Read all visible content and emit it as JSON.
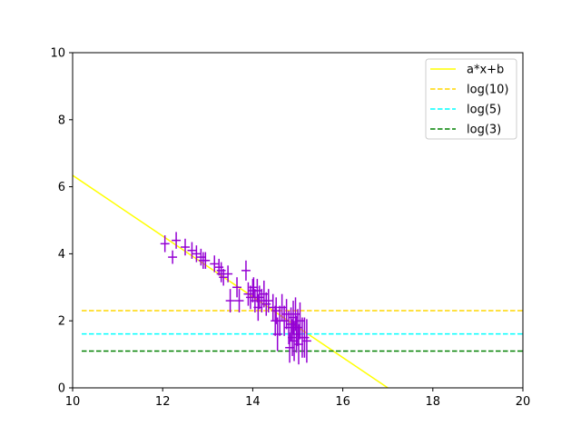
{
  "chart_data": {
    "type": "scatter",
    "title": "",
    "xlabel": "",
    "ylabel": "",
    "xlim": [
      10,
      20
    ],
    "ylim": [
      0,
      10
    ],
    "xticks": [
      "10",
      "12",
      "14",
      "16",
      "18",
      "20"
    ],
    "yticks": [
      "0",
      "2",
      "4",
      "6",
      "8",
      "10"
    ],
    "grid": false,
    "legend_position": "top-right",
    "series": [
      {
        "name": "a*x+b",
        "kind": "line",
        "color": "#ffff00",
        "dash": "solid",
        "x": [
          10,
          17
        ],
        "y": [
          6.34,
          0
        ]
      },
      {
        "name": "log(10)",
        "kind": "hline",
        "color": "#ffd700",
        "dash": "dashed",
        "y": 2.303
      },
      {
        "name": "log(5)",
        "kind": "hline",
        "color": "#00ffff",
        "dash": "dashed",
        "y": 1.609
      },
      {
        "name": "log(3)",
        "kind": "hline",
        "color": "#008000",
        "dash": "dashed",
        "y": 1.099
      }
    ],
    "points": {
      "color": "#9400d3",
      "x": [
        12.05,
        12.22,
        12.3,
        12.5,
        12.65,
        12.75,
        12.85,
        12.9,
        12.95,
        13.15,
        13.25,
        13.3,
        13.3,
        13.35,
        13.45,
        13.5,
        13.65,
        13.7,
        13.85,
        13.9,
        13.95,
        14.0,
        14.02,
        14.05,
        14.1,
        14.12,
        14.15,
        14.2,
        14.25,
        14.3,
        14.35,
        14.45,
        14.5,
        14.52,
        14.55,
        14.6,
        14.65,
        14.7,
        14.75,
        14.8,
        14.82,
        14.85,
        14.88,
        14.9,
        14.92,
        14.95,
        14.97,
        15.0,
        15.02,
        15.05,
        15.1,
        15.15,
        15.2
      ],
      "y": [
        4.3,
        3.9,
        4.4,
        4.2,
        4.1,
        4.0,
        3.9,
        3.8,
        3.8,
        3.7,
        3.6,
        3.4,
        3.5,
        3.3,
        3.4,
        2.6,
        3.0,
        2.6,
        3.5,
        2.8,
        2.7,
        2.9,
        3.0,
        2.6,
        2.9,
        2.4,
        2.7,
        2.6,
        2.8,
        2.5,
        2.6,
        2.4,
        2.0,
        2.3,
        1.6,
        2.0,
        2.4,
        2.0,
        2.2,
        1.8,
        1.2,
        1.9,
        1.5,
        2.1,
        1.4,
        2.2,
        1.6,
        1.8,
        1.3,
        2.0,
        1.5,
        1.5,
        1.4
      ],
      "xerr": [
        0.1,
        0.1,
        0.1,
        0.1,
        0.1,
        0.1,
        0.1,
        0.1,
        0.1,
        0.1,
        0.1,
        0.1,
        0.1,
        0.1,
        0.1,
        0.1,
        0.1,
        0.1,
        0.1,
        0.1,
        0.1,
        0.1,
        0.1,
        0.1,
        0.1,
        0.1,
        0.1,
        0.1,
        0.1,
        0.1,
        0.1,
        0.1,
        0.1,
        0.1,
        0.1,
        0.1,
        0.1,
        0.1,
        0.1,
        0.1,
        0.1,
        0.1,
        0.1,
        0.1,
        0.1,
        0.1,
        0.1,
        0.1,
        0.1,
        0.1,
        0.1,
        0.1,
        0.1
      ],
      "yerr": [
        0.25,
        0.2,
        0.25,
        0.25,
        0.25,
        0.25,
        0.25,
        0.25,
        0.25,
        0.25,
        0.25,
        0.25,
        0.25,
        0.25,
        0.25,
        0.35,
        0.3,
        0.35,
        0.3,
        0.35,
        0.35,
        0.35,
        0.3,
        0.35,
        0.35,
        0.4,
        0.35,
        0.35,
        0.4,
        0.35,
        0.35,
        0.4,
        0.45,
        0.4,
        0.5,
        0.45,
        0.4,
        0.45,
        0.45,
        0.5,
        0.45,
        0.5,
        0.55,
        0.5,
        0.6,
        0.5,
        0.55,
        0.55,
        0.6,
        0.55,
        0.6,
        0.6,
        0.65
      ]
    }
  }
}
